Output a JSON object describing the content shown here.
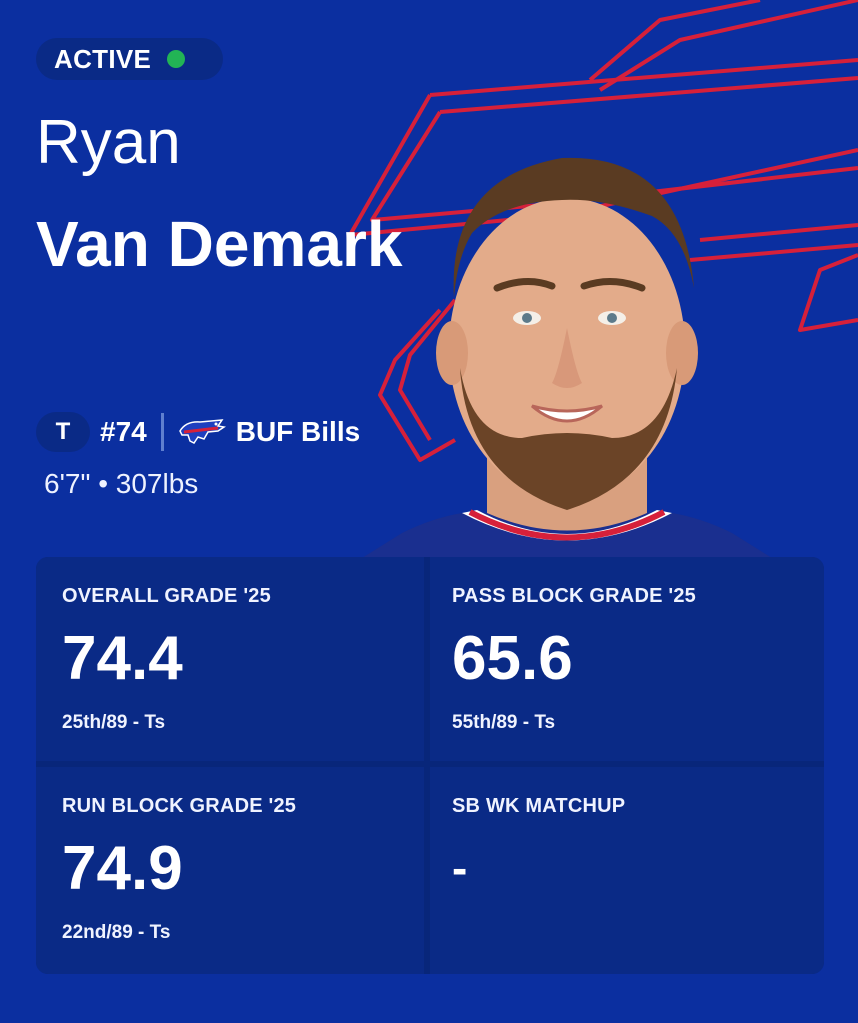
{
  "status": {
    "label": "ACTIVE",
    "color": "#22b455"
  },
  "player": {
    "first_name": "Ryan",
    "last_name": "Van Demark",
    "position": "T",
    "jersey": "#74",
    "team": "BUF Bills",
    "measurements": "6'7\" • 307lbs"
  },
  "colors": {
    "background": "#0b2fa0",
    "card": "#0a2a86",
    "logo_outline": "#d6203a"
  },
  "icons": {
    "team_logo": "bills-buffalo-logo-icon",
    "background_logo": "bills-buffalo-outline-logo"
  },
  "grades": [
    {
      "label": "OVERALL GRADE '25",
      "value": "74.4",
      "rank": "25th/89 - Ts"
    },
    {
      "label": "PASS BLOCK GRADE '25",
      "value": "65.6",
      "rank": "55th/89 - Ts"
    },
    {
      "label": "RUN BLOCK GRADE '25",
      "value": "74.9",
      "rank": "22nd/89 - Ts"
    },
    {
      "label": "SB WK MATCHUP",
      "value": "-",
      "rank": ""
    }
  ]
}
